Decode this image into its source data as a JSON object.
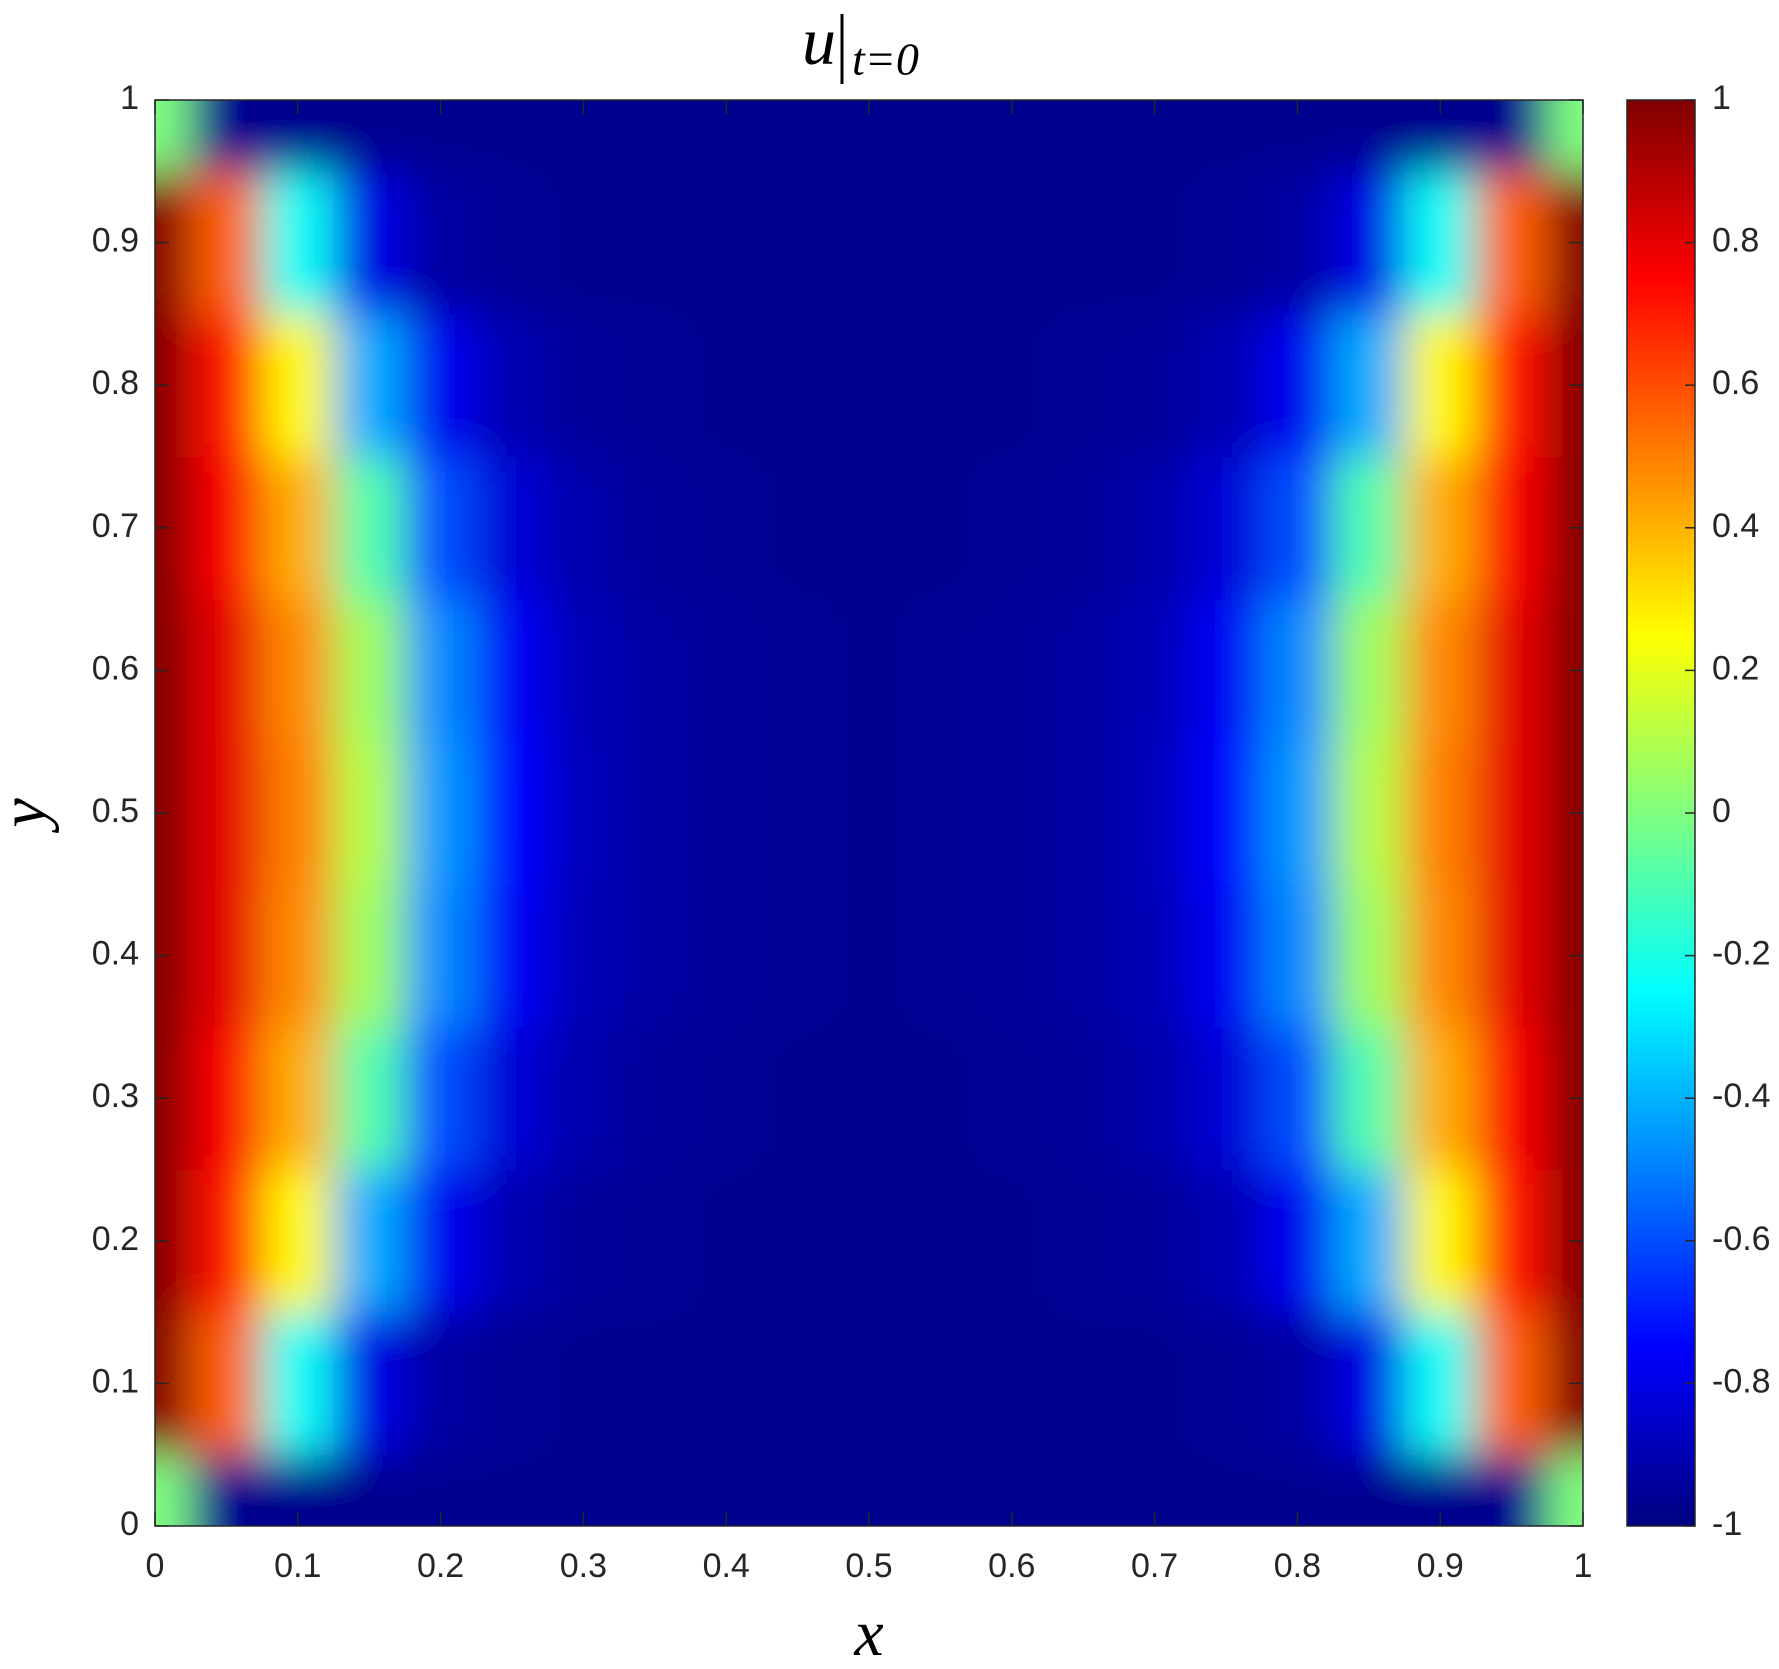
{
  "chart_data": {
    "type": "heatmap",
    "title": "u",
    "title_subscript": "t=0",
    "x_label": "x",
    "y_label": "y",
    "colormap": "jet",
    "clim": [
      -1,
      1
    ],
    "xlim": [
      0,
      1
    ],
    "ylim": [
      0,
      1
    ],
    "xticks": [
      0,
      0.1,
      0.2,
      0.3,
      0.4,
      0.5,
      0.6,
      0.7,
      0.8,
      0.9,
      1
    ],
    "yticks": [
      0,
      0.1,
      0.2,
      0.3,
      0.4,
      0.5,
      0.6,
      0.7,
      0.8,
      0.9,
      1
    ],
    "cticks": [
      -1,
      -0.8,
      -0.6,
      -0.4,
      -0.2,
      0,
      0.2,
      0.4,
      0.6,
      0.8,
      1
    ],
    "x": [
      0,
      0.05,
      0.1,
      0.15,
      0.2,
      0.25,
      0.3,
      0.35,
      0.4,
      0.45,
      0.5,
      0.55,
      0.6,
      0.65,
      0.7,
      0.75,
      0.8,
      0.85,
      0.9,
      0.95,
      1
    ],
    "y": [
      0,
      0.1,
      0.2,
      0.3,
      0.4,
      0.5,
      0.6,
      0.7,
      0.8,
      0.9,
      1
    ],
    "z": [
      [
        0,
        -0.97,
        -0.97,
        -0.97,
        -0.97,
        -0.97,
        -0.97,
        -0.97,
        -0.97,
        -0.97,
        -0.97,
        -0.97,
        -0.97,
        -0.97,
        -0.97,
        -0.97,
        -0.97,
        -0.97,
        -0.97,
        -0.97,
        0
      ],
      [
        1,
        0.56,
        -0.23,
        -0.8,
        -0.93,
        -0.96,
        -0.97,
        -0.97,
        -0.97,
        -0.97,
        -0.97,
        -0.97,
        -0.97,
        -0.97,
        -0.97,
        -0.96,
        -0.93,
        -0.8,
        -0.23,
        0.56,
        1
      ],
      [
        1,
        0.71,
        0.26,
        -0.41,
        -0.78,
        -0.9,
        -0.95,
        -0.96,
        -0.97,
        -0.97,
        -0.97,
        -0.97,
        -0.97,
        -0.96,
        -0.95,
        -0.9,
        -0.78,
        -0.41,
        0.26,
        0.71,
        1
      ],
      [
        1,
        0.76,
        0.41,
        -0.09,
        -0.6,
        -0.83,
        -0.91,
        -0.95,
        -0.96,
        -0.97,
        -0.97,
        -0.97,
        -0.96,
        -0.95,
        -0.91,
        -0.83,
        -0.6,
        -0.09,
        0.41,
        0.76,
        1
      ],
      [
        1,
        0.8,
        0.48,
        0.06,
        -0.48,
        -0.77,
        -0.89,
        -0.93,
        -0.95,
        -0.96,
        -0.97,
        -0.96,
        -0.95,
        -0.93,
        -0.89,
        -0.77,
        -0.48,
        0.06,
        0.48,
        0.8,
        1
      ],
      [
        1,
        0.8,
        0.5,
        0.1,
        -0.45,
        -0.75,
        -0.88,
        -0.93,
        -0.95,
        -0.96,
        -0.97,
        -0.96,
        -0.95,
        -0.93,
        -0.88,
        -0.75,
        -0.45,
        0.1,
        0.5,
        0.8,
        1
      ],
      [
        1,
        0.8,
        0.48,
        0.06,
        -0.48,
        -0.77,
        -0.89,
        -0.93,
        -0.95,
        -0.96,
        -0.97,
        -0.96,
        -0.95,
        -0.93,
        -0.89,
        -0.77,
        -0.48,
        0.06,
        0.48,
        0.8,
        1
      ],
      [
        1,
        0.76,
        0.41,
        -0.09,
        -0.6,
        -0.83,
        -0.91,
        -0.95,
        -0.96,
        -0.97,
        -0.97,
        -0.97,
        -0.96,
        -0.95,
        -0.91,
        -0.83,
        -0.6,
        -0.09,
        0.41,
        0.76,
        1
      ],
      [
        1,
        0.71,
        0.26,
        -0.41,
        -0.78,
        -0.9,
        -0.95,
        -0.96,
        -0.97,
        -0.97,
        -0.97,
        -0.97,
        -0.97,
        -0.96,
        -0.95,
        -0.9,
        -0.78,
        -0.41,
        0.26,
        0.71,
        1
      ],
      [
        1,
        0.56,
        -0.23,
        -0.8,
        -0.93,
        -0.96,
        -0.97,
        -0.97,
        -0.97,
        -0.97,
        -0.97,
        -0.97,
        -0.97,
        -0.97,
        -0.97,
        -0.96,
        -0.93,
        -0.8,
        -0.23,
        0.56,
        1
      ],
      [
        0,
        -0.97,
        -0.97,
        -0.97,
        -0.97,
        -0.97,
        -0.97,
        -0.97,
        -0.97,
        -0.97,
        -0.97,
        -0.97,
        -0.97,
        -0.97,
        -0.97,
        -0.97,
        -0.97,
        -0.97,
        -0.97,
        -0.97,
        0
      ]
    ]
  }
}
